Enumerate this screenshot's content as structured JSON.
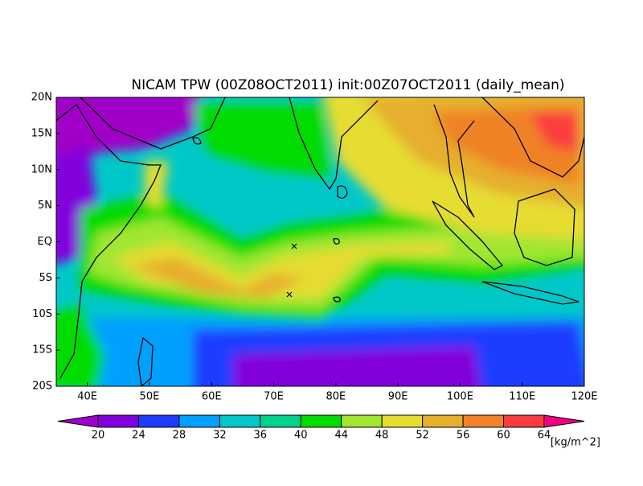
{
  "map": {
    "title": "NICAM TPW (00Z08OCT2011) init:00Z07OCT2011 (daily_mean)",
    "lon_range": [
      35,
      120
    ],
    "lat_range": [
      20,
      -20
    ],
    "lon_ticks": [
      {
        "value": 40,
        "label": "40E"
      },
      {
        "value": 50,
        "label": "50E"
      },
      {
        "value": 60,
        "label": "60E"
      },
      {
        "value": 70,
        "label": "70E"
      },
      {
        "value": 80,
        "label": "80E"
      },
      {
        "value": 90,
        "label": "90E"
      },
      {
        "value": 100,
        "label": "100E"
      },
      {
        "value": 110,
        "label": "110E"
      },
      {
        "value": 120,
        "label": "120E"
      }
    ],
    "lat_ticks": [
      {
        "value": 20,
        "label": "20N"
      },
      {
        "value": 15,
        "label": "15N"
      },
      {
        "value": 10,
        "label": "10N"
      },
      {
        "value": 5,
        "label": "5N"
      },
      {
        "value": 0,
        "label": "EQ"
      },
      {
        "value": -5,
        "label": "5S"
      },
      {
        "value": -10,
        "label": "10S"
      },
      {
        "value": -15,
        "label": "15S"
      },
      {
        "value": -20,
        "label": "20S"
      }
    ],
    "colorbar": {
      "levels": [
        20,
        24,
        28,
        32,
        36,
        40,
        44,
        48,
        52,
        56,
        60,
        64
      ],
      "colors": [
        "#a000c8",
        "#8200dc",
        "#1e3cff",
        "#00a0ff",
        "#00c8c8",
        "#00d28c",
        "#00dc00",
        "#a0e632",
        "#e6dc32",
        "#e6af2d",
        "#f08228",
        "#fa3c3c",
        "#f00082"
      ],
      "unit": "[kg/m^2]"
    }
  }
}
